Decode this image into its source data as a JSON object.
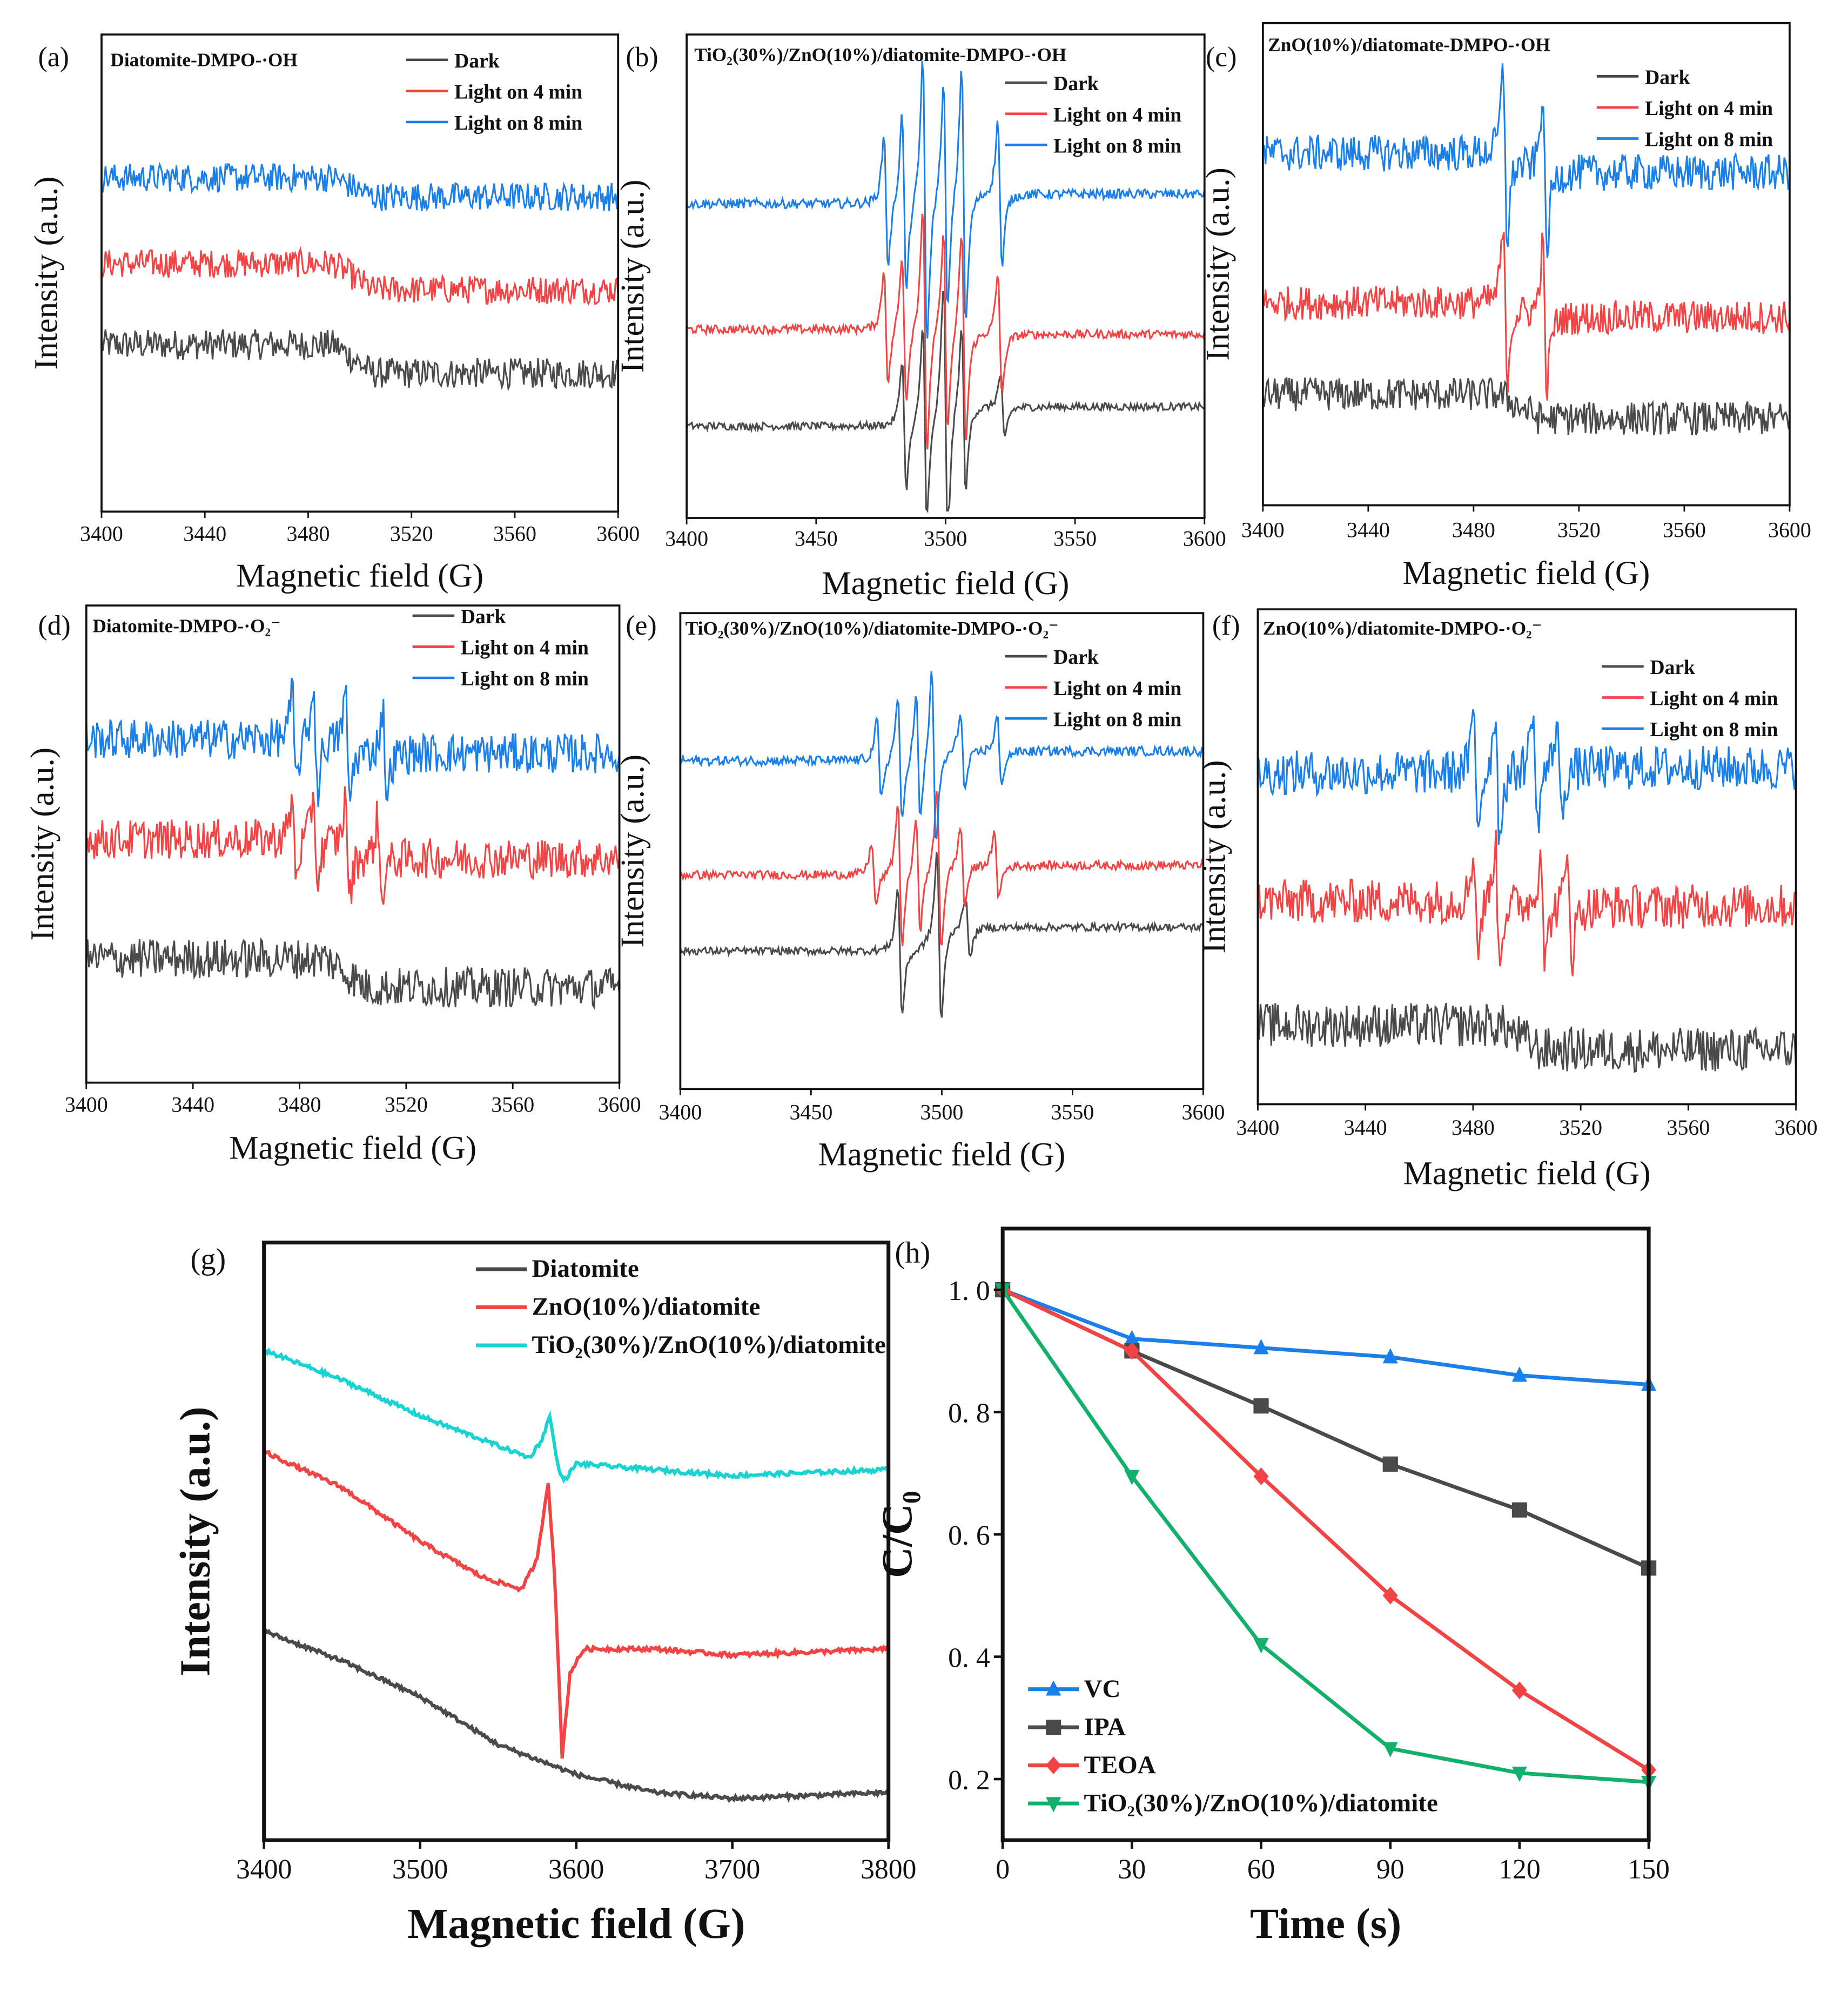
{
  "colors": {
    "dark": "#4a4a4a",
    "light4": "#f24444",
    "light8": "#1a7fe8",
    "g_diatomite": "#4a4a4a",
    "g_zno": "#f24444",
    "g_tio2": "#19d3d3",
    "h_vc": "#1a7fe8",
    "h_ipa": "#4a4a4a",
    "h_teoa": "#f24444",
    "h_tio2": "#12b06a"
  },
  "chart_data": [
    {
      "id": "a",
      "type": "line",
      "panel_label": "(a)",
      "title": "Diatomite-DMPO-·OH",
      "xlabel": "Magnetic field (G)",
      "ylabel": "Intensity (a.u.)",
      "xlim": [
        3400,
        3600
      ],
      "xticks": [
        3400,
        3440,
        3480,
        3520,
        3560,
        3600
      ],
      "legend": [
        "Dark",
        "Light on 4 min",
        "Light on 8 min"
      ],
      "series": [
        {
          "name": "Dark",
          "level": 3.5,
          "step": -0.6,
          "noise": 0.32,
          "peaks": []
        },
        {
          "name": "Light on 4 min",
          "level": 5.2,
          "step": -0.55,
          "noise": 0.3,
          "peaks": []
        },
        {
          "name": "Light on 8 min",
          "level": 7.0,
          "step": -0.4,
          "noise": 0.3,
          "peaks": []
        }
      ]
    },
    {
      "id": "b",
      "type": "line",
      "panel_label": "(b)",
      "title": "TiO₂(30%)/ZnO(10%)/diatomite-DMPO-·OH",
      "xlabel": "Magnetic field (G)",
      "ylabel": "Intensity (a.u.)",
      "xlim": [
        3400,
        3600
      ],
      "xticks": [
        3400,
        3450,
        3500,
        3550,
        3600
      ],
      "legend": [
        "Dark",
        "Light on 4 min",
        "Light on 8 min"
      ],
      "series": [
        {
          "name": "Dark",
          "level": 1.9,
          "step": 0.4,
          "noise": 0.08,
          "peaks": [
            [
              3484,
              1.6
            ],
            [
              3492,
              2.4
            ],
            [
              3500,
              3.2
            ],
            [
              3507,
              2.0
            ],
            [
              3522,
              0.8
            ]
          ]
        },
        {
          "name": "Light on 4 min",
          "level": 3.9,
          "step": -0.1,
          "noise": 0.09,
          "peaks": [
            [
              3477,
              1.4
            ],
            [
              3484,
              1.8
            ],
            [
              3492,
              3.0
            ],
            [
              3500,
              2.4
            ],
            [
              3507,
              2.6
            ],
            [
              3521,
              1.5
            ]
          ]
        },
        {
          "name": "Light on 8 min",
          "level": 6.5,
          "step": 0.2,
          "noise": 0.1,
          "peaks": [
            [
              3477,
              1.6
            ],
            [
              3484,
              2.2
            ],
            [
              3492,
              3.6
            ],
            [
              3500,
              2.8
            ],
            [
              3507,
              3.2
            ],
            [
              3521,
              1.8
            ]
          ]
        }
      ]
    },
    {
      "id": "c",
      "type": "line",
      "panel_label": "(c)",
      "title": "ZnO(10%)/diatomate-DMPO-·OH",
      "xlabel": "Magnetic field (G)",
      "ylabel": "Intensity (a.u.)",
      "xlim": [
        3400,
        3600
      ],
      "xticks": [
        3400,
        3440,
        3480,
        3520,
        3560,
        3600
      ],
      "legend": [
        "Dark",
        "Light on 4 min",
        "Light on 8 min"
      ],
      "series": [
        {
          "name": "Dark",
          "level": 2.3,
          "step": -0.5,
          "noise": 0.35,
          "peaks": []
        },
        {
          "name": "Light on 4 min",
          "level": 4.2,
          "step": -0.3,
          "noise": 0.35,
          "peaks": [
            [
              3492,
              1.8
            ],
            [
              3507,
              1.8
            ]
          ]
        },
        {
          "name": "Light on 8 min",
          "level": 7.3,
          "step": -0.4,
          "noise": 0.38,
          "peaks": [
            [
              3492,
              2.0
            ],
            [
              3507,
              2.0
            ]
          ]
        }
      ]
    },
    {
      "id": "d",
      "type": "line",
      "panel_label": "(d)",
      "title": "Diatomite-DMPO-·O₂⁻",
      "xlabel": "Magnetic field (G)",
      "ylabel": "Intensity (a.u.)",
      "xlim": [
        3400,
        3600
      ],
      "xticks": [
        3400,
        3440,
        3480,
        3520,
        3560,
        3600
      ],
      "legend": [
        "Dark",
        "Light on 4 min",
        "Light on 8 min"
      ],
      "series": [
        {
          "name": "Dark",
          "level": 2.6,
          "step": -0.6,
          "noise": 0.42,
          "peaks": []
        },
        {
          "name": "Light on 4 min",
          "level": 5.1,
          "step": -0.4,
          "noise": 0.42,
          "peaks": [
            [
              3478,
              0.9
            ],
            [
              3486,
              1.1
            ],
            [
              3498,
              1.2
            ],
            [
              3510,
              1.0
            ]
          ]
        },
        {
          "name": "Light on 8 min",
          "level": 7.2,
          "step": -0.3,
          "noise": 0.42,
          "peaks": [
            [
              3478,
              1.1
            ],
            [
              3486,
              1.3
            ],
            [
              3498,
              1.3
            ],
            [
              3512,
              1.1
            ]
          ]
        }
      ]
    },
    {
      "id": "e",
      "type": "line",
      "panel_label": "(e)",
      "title": "TiO₂(30%)/ZnO(10%)/diatomite-DMPO-·O₂⁻",
      "xlabel": "Magnetic field (G)",
      "ylabel": "Intensity (a.u.)",
      "xlim": [
        3400,
        3600
      ],
      "xticks": [
        3400,
        3450,
        3500,
        3550,
        3600
      ],
      "legend": [
        "Dark",
        "Light on 4 min",
        "Light on 8 min"
      ],
      "series": [
        {
          "name": "Dark",
          "level": 2.9,
          "step": 0.5,
          "noise": 0.08,
          "peaks": [
            [
              3484,
              1.6
            ],
            [
              3499,
              2.2
            ],
            [
              3510,
              0.8
            ]
          ]
        },
        {
          "name": "Light on 4 min",
          "level": 4.5,
          "step": 0.2,
          "noise": 0.09,
          "peaks": [
            [
              3474,
              0.8
            ],
            [
              3484,
              1.8
            ],
            [
              3491,
              1.4
            ],
            [
              3499,
              2.0
            ],
            [
              3508,
              1.0
            ],
            [
              3521,
              0.8
            ]
          ]
        },
        {
          "name": "Light on 8 min",
          "level": 6.9,
          "step": 0.2,
          "noise": 0.1,
          "peaks": [
            [
              3476,
              1.0
            ],
            [
              3484,
              1.6
            ],
            [
              3491,
              1.6
            ],
            [
              3497,
              2.2
            ],
            [
              3508,
              1.0
            ],
            [
              3522,
              0.9
            ]
          ]
        }
      ]
    },
    {
      "id": "f",
      "type": "line",
      "panel_label": "(f)",
      "title": "ZnO(10%)/diatomite-DMPO-·O₂⁻",
      "xlabel": "Magnetic field (G)",
      "ylabel": "Intensity (a.u.)",
      "xlim": [
        3400,
        3600
      ],
      "xticks": [
        3400,
        3440,
        3480,
        3520,
        3560,
        3600
      ],
      "legend": [
        "Dark",
        "Light on 4 min",
        "Light on 8 min"
      ],
      "series": [
        {
          "name": "Dark",
          "level": 1.6,
          "step": -0.5,
          "noise": 0.45,
          "peaks": []
        },
        {
          "name": "Light on 4 min",
          "level": 4.1,
          "step": -0.1,
          "noise": 0.45,
          "peaks": [
            [
              3481,
              1.2
            ],
            [
              3489,
              1.4
            ],
            [
              3506,
              1.4
            ],
            [
              3516,
              1.2
            ]
          ]
        },
        {
          "name": "Light on 8 min",
          "level": 6.7,
          "step": 0.1,
          "noise": 0.45,
          "peaks": [
            [
              3481,
              1.3
            ],
            [
              3489,
              1.5
            ],
            [
              3503,
              1.5
            ],
            [
              3512,
              1.2
            ]
          ]
        }
      ]
    },
    {
      "id": "g",
      "type": "line",
      "panel_label": "(g)",
      "xlabel": "Magnetic field (G)",
      "ylabel": "Intensity (a.u.)",
      "xlim": [
        3400,
        3800
      ],
      "xticks": [
        3400,
        3500,
        3600,
        3700,
        3800
      ],
      "legend": [
        "Diatomite",
        "ZnO(10%)/diatomite",
        "TiO₂(30%)/ZnO(10%)/diatomite"
      ],
      "series": [
        {
          "name": "Diatomite",
          "points": [
            [
              3400,
              3.5
            ],
            [
              3450,
              3.0
            ],
            [
              3500,
              2.4
            ],
            [
              3550,
              1.6
            ],
            [
              3600,
              1.1
            ],
            [
              3650,
              0.8
            ],
            [
              3700,
              0.7
            ],
            [
              3750,
              0.75
            ],
            [
              3800,
              0.8
            ]
          ]
        },
        {
          "name": "ZnO(10%)/diatomite",
          "points": [
            [
              3400,
              6.5
            ],
            [
              3450,
              5.9
            ],
            [
              3500,
              5.0
            ],
            [
              3540,
              4.4
            ],
            [
              3565,
              4.2
            ],
            [
              3575,
              4.7
            ],
            [
              3582,
              6.0
            ],
            [
              3586,
              4.5
            ],
            [
              3591,
              1.4
            ],
            [
              3596,
              2.8
            ],
            [
              3605,
              3.2
            ],
            [
              3650,
              3.2
            ],
            [
              3700,
              3.1
            ],
            [
              3800,
              3.2
            ]
          ]
        },
        {
          "name": "TiO₂(30%)/ZnO(10%)/diatomite",
          "points": [
            [
              3400,
              8.2
            ],
            [
              3450,
              7.7
            ],
            [
              3500,
              7.1
            ],
            [
              3550,
              6.6
            ],
            [
              3570,
              6.4
            ],
            [
              3578,
              6.7
            ],
            [
              3583,
              7.1
            ],
            [
              3588,
              6.3
            ],
            [
              3592,
              6.0
            ],
            [
              3600,
              6.3
            ],
            [
              3650,
              6.2
            ],
            [
              3700,
              6.1
            ],
            [
              3800,
              6.2
            ]
          ]
        }
      ]
    },
    {
      "id": "h",
      "type": "line",
      "panel_label": "(h)",
      "xlabel": "Time (s)",
      "ylabel": "C/C₀",
      "xlim": [
        0,
        150
      ],
      "ylim": [
        0.1,
        1.1
      ],
      "xticks": [
        0,
        30,
        60,
        90,
        120,
        150
      ],
      "yticks": [
        0.2,
        0.4,
        0.6,
        0.8,
        1.0
      ],
      "ytick_labels": [
        "0. 2",
        "0. 4",
        "0. 6",
        "0. 8",
        "1. 0"
      ],
      "x": [
        0,
        30,
        60,
        90,
        120,
        150
      ],
      "series": [
        {
          "name": "VC",
          "marker": "triangle-up",
          "values": [
            1.0,
            0.92,
            0.905,
            0.89,
            0.86,
            0.845
          ]
        },
        {
          "name": "IPA",
          "marker": "square",
          "values": [
            1.0,
            0.9,
            0.81,
            0.715,
            0.64,
            0.545
          ]
        },
        {
          "name": "TEOA",
          "marker": "diamond",
          "values": [
            1.0,
            0.9,
            0.695,
            0.5,
            0.345,
            0.215
          ]
        },
        {
          "name": "TiO₂(30%)/ZnO(10%)/diatomite",
          "marker": "triangle-down",
          "values": [
            1.0,
            0.695,
            0.42,
            0.25,
            0.21,
            0.195
          ]
        }
      ]
    }
  ]
}
